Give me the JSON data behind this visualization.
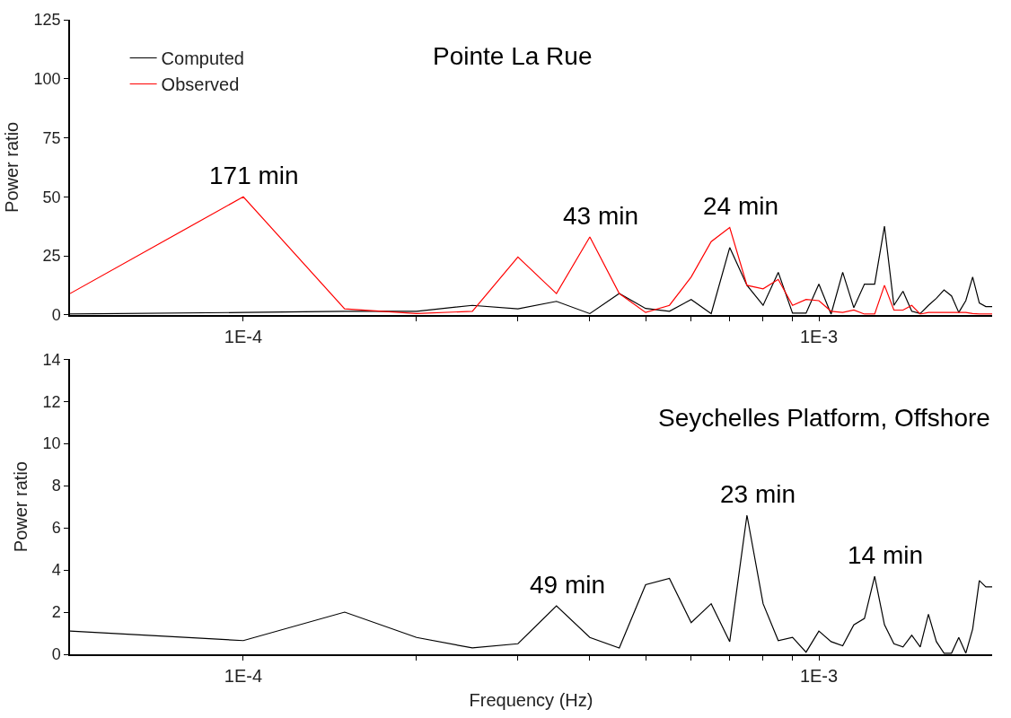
{
  "chart_data": [
    {
      "type": "line",
      "title": "Pointe La Rue",
      "ylabel": "Power ratio",
      "log": "x",
      "legend": "top left",
      "marker": "none",
      "line_style": "solid",
      "xlim": [
        5e-05,
        0.002
      ],
      "ylim": [
        0,
        125
      ],
      "yticks": [
        0,
        25,
        50,
        75,
        100,
        125
      ],
      "xticks": [
        {
          "value": 0.0001,
          "label": "1E-4"
        },
        {
          "value": 0.0002,
          "label": null
        },
        {
          "value": 0.0003,
          "label": null
        },
        {
          "value": 0.0004,
          "label": null
        },
        {
          "value": 0.0005,
          "label": null
        },
        {
          "value": 0.0006,
          "label": null
        },
        {
          "value": 0.0007,
          "label": null
        },
        {
          "value": 0.0008,
          "label": null
        },
        {
          "value": 0.0009,
          "label": null
        },
        {
          "value": 0.001,
          "label": "1E-3"
        }
      ],
      "x": [
        5e-05,
        0.0001,
        0.00015,
        0.0002,
        0.00025,
        0.0003,
        0.00035,
        0.0004,
        0.00045,
        0.0005,
        0.00055,
        0.0006,
        0.00065,
        0.0007,
        0.00075,
        0.0008,
        0.00085,
        0.0009,
        0.00095,
        0.001,
        0.00105,
        0.0011,
        0.00115,
        0.0012,
        0.00125,
        0.0013,
        0.00135,
        0.0014,
        0.00145,
        0.0015,
        0.00155,
        0.0016,
        0.00165,
        0.0017,
        0.00175,
        0.0018,
        0.00185,
        0.0019,
        0.00195,
        0.002
      ],
      "series": [
        {
          "name": "Computed",
          "color": "#000000",
          "values": [
            0.3,
            1,
            1.5,
            1.5,
            4,
            2.5,
            5.7,
            0.5,
            9,
            2.7,
            1.5,
            6.5,
            0.5,
            28.5,
            12.5,
            4,
            18,
            0.7,
            0.7,
            13,
            0.3,
            18,
            3,
            13,
            13,
            37.5,
            4,
            10,
            1.5,
            0.5,
            4,
            7,
            10.5,
            8,
            1,
            6,
            16,
            5,
            3.5,
            3.5
          ]
        },
        {
          "name": "Observed",
          "color": "#ff0000",
          "values": [
            9,
            50,
            2.5,
            0.5,
            1.5,
            24.5,
            9,
            33,
            9,
            1,
            4,
            16,
            31,
            37,
            12.5,
            11,
            15,
            4,
            6.5,
            6,
            1.5,
            1,
            2,
            0.3,
            0.3,
            12.5,
            2,
            2,
            4,
            0.3,
            1,
            1,
            1,
            1,
            1,
            1,
            0.5,
            0.3,
            0.3,
            0.3
          ]
        }
      ],
      "annotations": [
        {
          "text": "171 min",
          "x": 0.0001,
          "y": 50
        },
        {
          "text": "43 min",
          "x": 0.0004,
          "y": 33
        },
        {
          "text": "24 min",
          "x": 0.0007,
          "y": 37
        }
      ]
    },
    {
      "type": "line",
      "title": "Seychelles Platform, Offshore",
      "xlabel": "Frequency (Hz)",
      "ylabel": "Power ratio",
      "log": "x",
      "legend": false,
      "marker": "none",
      "line_style": "solid",
      "xlim": [
        5e-05,
        0.002
      ],
      "ylim": [
        0,
        14
      ],
      "yticks": [
        0,
        2,
        4,
        6,
        8,
        10,
        12,
        14
      ],
      "xticks": [
        {
          "value": 0.0001,
          "label": "1E-4"
        },
        {
          "value": 0.0002,
          "label": null
        },
        {
          "value": 0.0003,
          "label": null
        },
        {
          "value": 0.0004,
          "label": null
        },
        {
          "value": 0.0005,
          "label": null
        },
        {
          "value": 0.0006,
          "label": null
        },
        {
          "value": 0.0007,
          "label": null
        },
        {
          "value": 0.0008,
          "label": null
        },
        {
          "value": 0.0009,
          "label": null
        },
        {
          "value": 0.001,
          "label": "1E-3"
        }
      ],
      "x": [
        5e-05,
        0.0001,
        0.00015,
        0.0002,
        0.00025,
        0.0003,
        0.00035,
        0.0004,
        0.00045,
        0.0005,
        0.00055,
        0.0006,
        0.00065,
        0.0007,
        0.00075,
        0.0008,
        0.00085,
        0.0009,
        0.00095,
        0.001,
        0.00105,
        0.0011,
        0.00115,
        0.0012,
        0.00125,
        0.0013,
        0.00135,
        0.0014,
        0.00145,
        0.0015,
        0.00155,
        0.0016,
        0.00165,
        0.0017,
        0.00175,
        0.0018,
        0.00185,
        0.0019,
        0.00195,
        0.002
      ],
      "series": [
        {
          "color": "#000000",
          "values": [
            1.1,
            0.65,
            2,
            0.8,
            0.3,
            0.5,
            2.3,
            0.8,
            0.3,
            3.3,
            3.6,
            1.5,
            2.4,
            0.6,
            6.6,
            2.4,
            0.65,
            0.8,
            0.1,
            1.1,
            0.6,
            0.4,
            1.4,
            1.7,
            3.7,
            1.4,
            0.5,
            0.35,
            0.9,
            0.35,
            1.9,
            0.6,
            0.05,
            0.05,
            0.8,
            0.05,
            1.2,
            3.5,
            3.2,
            3.2
          ]
        }
      ],
      "annotations": [
        {
          "text": "49 min",
          "x": 0.00035,
          "y": 2.3
        },
        {
          "text": "23 min",
          "x": 0.00075,
          "y": 6.6
        },
        {
          "text": "14 min",
          "x": 0.00125,
          "y": 3.7
        }
      ]
    }
  ]
}
